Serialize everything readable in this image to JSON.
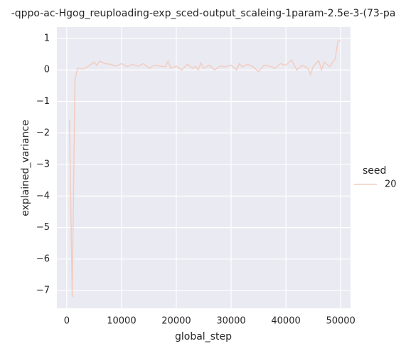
{
  "chart_data": {
    "type": "line",
    "title": "-qppo-ac-Hgog_reuploading-exp_sced-output_scaleing-1param-2.5e-3-(73-pa",
    "xlabel": "global_step",
    "ylabel": "explained_variance",
    "x": [
      500,
      1000,
      1500,
      2000,
      3000,
      4000,
      5000,
      5500,
      6000,
      7000,
      8000,
      9000,
      10000,
      11000,
      12000,
      13000,
      14000,
      15000,
      16000,
      17000,
      18000,
      18500,
      19000,
      20000,
      21000,
      22000,
      23000,
      23500,
      24000,
      24500,
      25000,
      26000,
      27000,
      28000,
      29000,
      30000,
      31000,
      31500,
      32000,
      33000,
      34000,
      35000,
      36000,
      37000,
      38000,
      39000,
      40000,
      41000,
      42000,
      43000,
      44000,
      44500,
      45000,
      46000,
      46500,
      47000,
      48000,
      49000,
      49500,
      50000
    ],
    "series": [
      {
        "name": "20",
        "color": "#f2cdc0",
        "values": [
          -1.6,
          -7.2,
          -0.3,
          0.05,
          0.03,
          0.12,
          0.25,
          0.15,
          0.28,
          0.2,
          0.18,
          0.12,
          0.2,
          0.1,
          0.18,
          0.12,
          0.2,
          0.05,
          0.15,
          0.12,
          0.1,
          0.28,
          0.05,
          0.12,
          0.0,
          0.18,
          0.05,
          0.12,
          0.0,
          0.22,
          0.05,
          0.15,
          0.0,
          0.12,
          0.1,
          0.15,
          0.0,
          0.2,
          0.1,
          0.18,
          0.1,
          -0.05,
          0.15,
          0.12,
          0.05,
          0.2,
          0.15,
          0.32,
          0.0,
          0.15,
          0.05,
          -0.15,
          0.12,
          0.3,
          0.0,
          0.25,
          0.1,
          0.35,
          0.92,
          0.92
        ]
      }
    ],
    "legend_title": "seed",
    "xlim": [
      -1800,
      51800
    ],
    "xticks": [
      0,
      10000,
      20000,
      30000,
      40000,
      50000
    ],
    "ylim": [
      -7.56,
      1.36
    ],
    "yticks": [
      {
        "value": -7,
        "label": "−7"
      },
      {
        "value": -6,
        "label": "−6"
      },
      {
        "value": -5,
        "label": "−5"
      },
      {
        "value": -4,
        "label": "−4"
      },
      {
        "value": -3,
        "label": "−3"
      },
      {
        "value": -2,
        "label": "−2"
      },
      {
        "value": -1,
        "label": "−1"
      },
      0,
      1
    ],
    "grid": true
  }
}
